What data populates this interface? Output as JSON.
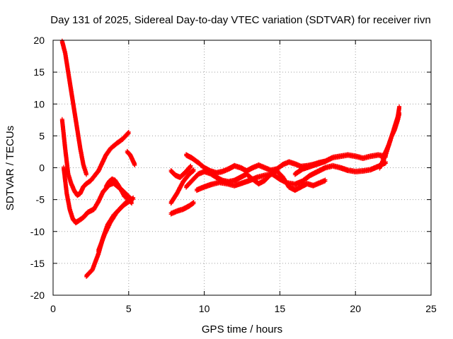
{
  "chart_data": {
    "type": "scatter",
    "title": "Day 131 of 2025, Sidereal Day-to-day VTEC variation (SDTVAR) for receiver rivn",
    "xlabel": "GPS time / hours",
    "ylabel": "SDTVAR / TECUs",
    "xlim": [
      0,
      25
    ],
    "ylim": [
      -20,
      20
    ],
    "xticks": [
      0,
      5,
      10,
      15,
      20,
      25
    ],
    "yticks": [
      -20,
      -15,
      -10,
      -5,
      0,
      5,
      10,
      15,
      20
    ],
    "grid": true,
    "marker": "+",
    "color": "#ff0000",
    "series": [
      {
        "x": [
          0.6,
          0.8,
          1.0,
          1.2,
          1.4,
          1.6,
          1.8,
          2.0,
          2.2
        ],
        "y": [
          19.8,
          18.0,
          15.0,
          12.0,
          9.0,
          6.0,
          3.0,
          0.5,
          -1.0
        ]
      },
      {
        "x": [
          0.6,
          0.8,
          1.0,
          1.2,
          1.4,
          1.6,
          1.8,
          2.0,
          2.2,
          2.5,
          3.0,
          3.3,
          3.5,
          3.8,
          4.2,
          4.6,
          5.0
        ],
        "y": [
          7.5,
          3.0,
          -1.0,
          -2.5,
          -3.6,
          -4.3,
          -4.0,
          -3.0,
          -2.5,
          -2.0,
          -0.5,
          1.0,
          2.0,
          3.0,
          3.8,
          4.5,
          5.5
        ]
      },
      {
        "x": [
          0.7,
          0.9,
          1.1,
          1.3,
          1.5,
          1.7,
          2.0,
          2.3,
          2.7,
          3.0,
          3.3,
          3.7,
          4.0,
          4.3,
          4.6,
          4.9,
          5.2
        ],
        "y": [
          0.0,
          -4.0,
          -6.5,
          -8.0,
          -8.6,
          -8.3,
          -7.8,
          -7.0,
          -6.5,
          -5.3,
          -3.8,
          -2.7,
          -2.4,
          -3.0,
          -3.6,
          -4.3,
          -5.0
        ]
      },
      {
        "x": [
          2.2,
          2.6,
          3.0,
          3.3,
          3.6,
          4.0,
          4.4,
          4.8,
          5.2
        ],
        "y": [
          -17.0,
          -16.0,
          -13.5,
          -11.0,
          -9.0,
          -7.5,
          -6.5,
          -5.5,
          -5.0
        ]
      },
      {
        "x": [
          3.0,
          3.4,
          3.8,
          4.2,
          4.6,
          5.0,
          5.3
        ],
        "y": [
          -13.0,
          -10.5,
          -8.5,
          -7.0,
          -6.0,
          -5.3,
          -4.8
        ]
      },
      {
        "x": [
          3.5,
          3.7,
          3.9,
          4.1,
          4.3,
          4.5,
          4.7,
          5.0,
          5.2
        ],
        "y": [
          -3.0,
          -2.2,
          -1.8,
          -2.0,
          -2.7,
          -3.5,
          -4.4,
          -5.0,
          -5.5
        ]
      },
      {
        "x": [
          4.9,
          5.1,
          5.3,
          5.4
        ],
        "y": [
          2.5,
          2.0,
          1.0,
          0.5
        ]
      },
      {
        "x": [
          7.8,
          8.1,
          8.4,
          8.8,
          9.1
        ],
        "y": [
          -0.5,
          -1.2,
          -1.5,
          -0.6,
          0.2
        ]
      },
      {
        "x": [
          7.8,
          8.2,
          8.6,
          9.0,
          9.3
        ],
        "y": [
          -5.5,
          -4.0,
          -2.2,
          -1.0,
          -0.4
        ]
      },
      {
        "x": [
          7.8,
          8.2,
          8.6,
          9.0,
          9.3
        ],
        "y": [
          -7.2,
          -6.8,
          -6.5,
          -6.0,
          -5.5
        ]
      },
      {
        "x": [
          8.8,
          9.2,
          9.6,
          10.0,
          10.4,
          10.8,
          11.2,
          11.6,
          12.0,
          12.4,
          12.8,
          13.2,
          13.6,
          14.0,
          14.4,
          14.8,
          15.2,
          15.6,
          16.0,
          16.4,
          16.8,
          17.2,
          17.6,
          18.0
        ],
        "y": [
          2.0,
          1.5,
          0.8,
          0.0,
          -0.5,
          -0.8,
          -0.6,
          -0.2,
          0.3,
          0.0,
          -0.5,
          0.0,
          0.4,
          0.0,
          -0.4,
          -0.2,
          0.5,
          0.9,
          0.6,
          0.2,
          0.3,
          0.5,
          0.8,
          1.0
        ]
      },
      {
        "x": [
          8.8,
          9.2,
          9.6,
          10.0,
          10.4,
          10.8,
          11.2,
          11.6,
          12.0,
          12.4,
          12.8,
          13.2,
          13.6,
          14.0,
          14.4,
          14.8,
          15.2,
          15.6,
          16.0,
          16.4,
          16.8,
          17.2,
          17.6,
          18.0
        ],
        "y": [
          -3.0,
          -2.0,
          -1.0,
          -0.6,
          -0.9,
          -1.5,
          -2.0,
          -2.2,
          -2.0,
          -1.5,
          -1.0,
          -1.8,
          -2.5,
          -2.0,
          -1.0,
          -0.5,
          -1.5,
          -3.0,
          -3.5,
          -3.0,
          -2.5,
          -2.8,
          -2.4,
          -2.0
        ]
      },
      {
        "x": [
          9.5,
          10.0,
          10.5,
          11.0,
          11.5,
          12.0,
          12.5,
          13.0,
          13.5,
          14.0,
          14.5,
          15.0,
          15.5,
          16.0,
          16.5,
          17.0,
          17.5,
          18.0,
          18.5,
          19.0,
          19.5,
          20.0,
          20.5,
          21.0,
          21.5,
          22.0
        ],
        "y": [
          -3.5,
          -3.0,
          -2.6,
          -2.3,
          -2.5,
          -2.8,
          -2.4,
          -2.0,
          -1.5,
          -1.2,
          -1.0,
          -1.8,
          -2.4,
          -2.6,
          -2.1,
          -1.2,
          -0.6,
          0.0,
          0.3,
          0.0,
          -0.4,
          -0.6,
          -0.5,
          -0.3,
          0.2,
          0.8
        ]
      },
      {
        "x": [
          16.0,
          16.5,
          17.0,
          17.5,
          18.0,
          18.5,
          19.0,
          19.5,
          20.0,
          20.5,
          21.0,
          21.5,
          22.0
        ],
        "y": [
          -1.0,
          -0.2,
          0.2,
          0.6,
          1.0,
          1.6,
          1.8,
          2.0,
          1.8,
          1.5,
          1.8,
          2.0,
          1.8
        ]
      },
      {
        "x": [
          21.6,
          21.8,
          22.0,
          22.2,
          22.4,
          22.6,
          22.8,
          22.9
        ],
        "y": [
          0.0,
          1.0,
          2.0,
          3.5,
          5.0,
          6.5,
          8.0,
          9.5
        ]
      },
      {
        "x": [
          21.8,
          22.0,
          22.2,
          22.4,
          22.6,
          22.8,
          22.9
        ],
        "y": [
          1.5,
          2.5,
          3.6,
          5.0,
          6.0,
          7.5,
          8.5
        ]
      }
    ]
  }
}
